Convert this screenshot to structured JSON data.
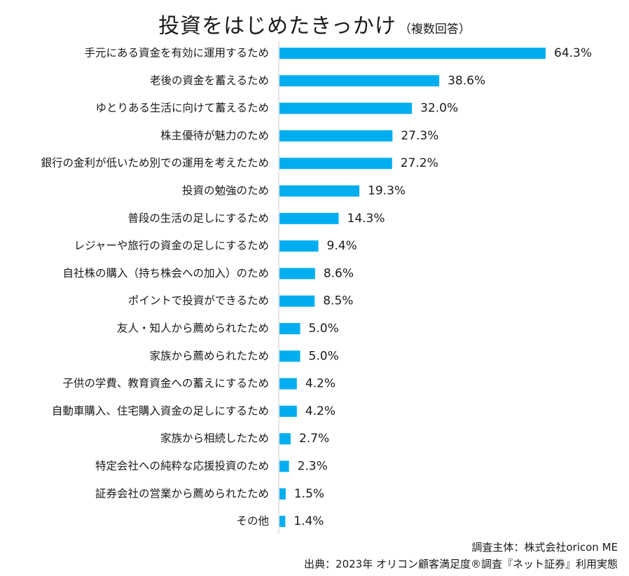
{
  "title": "投資をはじめたきっかけ",
  "subtitle": "（複数回答）",
  "chart_data": {
    "type": "bar",
    "orientation": "horizontal",
    "title": "投資をはじめたきっかけ（複数回答）",
    "unit": "%",
    "bar_color": "#00AEEF",
    "xlim": [
      0,
      70
    ],
    "categories": [
      "手元にある資金を有効に運用するため",
      "老後の資金を蓄えるため",
      "ゆとりある生活に向けて蓄えるため",
      "株主優待が魅力のため",
      "銀行の金利が低いため別での運用を考えたため",
      "投資の勉強のため",
      "普段の生活の足しにするため",
      "レジャーや旅行の資金の足しにするため",
      "自社株の購入（持ち株会への加入）のため",
      "ポイントで投資ができるため",
      "友人・知人から薦められたため",
      "家族から薦められたため",
      "子供の学費、教育資金への蓄えにするため",
      "自動車購入、住宅購入資金の足しにするため",
      "家族から相続したため",
      "特定会社への純粋な応援投資のため",
      "証券会社の営業から薦められたため",
      "その他"
    ],
    "values": [
      64.3,
      38.6,
      32.0,
      27.3,
      27.2,
      19.3,
      14.3,
      9.4,
      8.6,
      8.5,
      5.0,
      5.0,
      4.2,
      4.2,
      2.7,
      2.3,
      1.5,
      1.4
    ],
    "value_labels": [
      "64.3%",
      "38.6%",
      "32.0%",
      "27.3%",
      "27.2%",
      "19.3%",
      "14.3%",
      "9.4%",
      "8.6%",
      "8.5%",
      "5.0%",
      "5.0%",
      "4.2%",
      "4.2%",
      "2.7%",
      "2.3%",
      "1.5%",
      "1.4%"
    ]
  },
  "footer": {
    "line1": "調査主体：株式会社oricon ME",
    "line2": "出典：2023年 オリコン顧客満足度®調査『ネット証券』利用実態"
  }
}
